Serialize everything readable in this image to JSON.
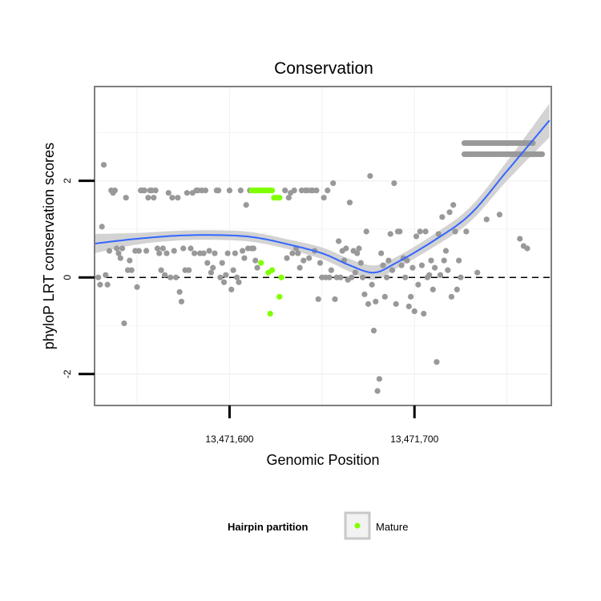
{
  "chart_data": {
    "type": "scatter",
    "title": "Conservation",
    "xlabel": "Genomic Position",
    "ylabel": "phyloP LRT conservation scores",
    "xlim": [
      13471527,
      13471774
    ],
    "ylim": [
      -2.65,
      3.95
    ],
    "x_ticks": [
      {
        "value": 13471600,
        "label": "13,471,600"
      },
      {
        "value": 13471700,
        "label": "13,471,700"
      }
    ],
    "y_ticks": [
      {
        "value": -2,
        "label": "-2"
      },
      {
        "value": 0,
        "label": "0"
      },
      {
        "value": 2,
        "label": "2"
      }
    ],
    "grid": true,
    "reference_line_y": 0,
    "legend": {
      "title": "Hairpin partition",
      "entries": [
        {
          "label": "Mature",
          "color": "#7fff00"
        }
      ],
      "position": "bottom"
    },
    "colors": {
      "points": "#999999",
      "mature": "#7fff00",
      "smooth": "#3366ff",
      "ribbon": "#c8c8c8",
      "panel_border": "#7f7f7f",
      "grid": "#f2f2f2"
    },
    "series": [
      {
        "name": "Other",
        "points": [
          [
            13471529,
            0.0
          ],
          [
            13471530,
            -0.15
          ],
          [
            13471531,
            1.05
          ],
          [
            13471532,
            2.33
          ],
          [
            13471533,
            0.05
          ],
          [
            13471534,
            -0.15
          ],
          [
            13471535,
            0.55
          ],
          [
            13471536,
            1.8
          ],
          [
            13471537,
            1.75
          ],
          [
            13471538,
            1.8
          ],
          [
            13471539,
            0.6
          ],
          [
            13471540,
            0.5
          ],
          [
            13471541,
            0.4
          ],
          [
            13471542,
            0.6
          ],
          [
            13471543,
            -0.95
          ],
          [
            13471544,
            1.65
          ],
          [
            13471545,
            0.15
          ],
          [
            13471546,
            0.35
          ],
          [
            13471547,
            0.15
          ],
          [
            13471549,
            0.55
          ],
          [
            13471550,
            -0.2
          ],
          [
            13471551,
            0.55
          ],
          [
            13471552,
            1.8
          ],
          [
            13471553,
            1.8
          ],
          [
            13471554,
            1.8
          ],
          [
            13471555,
            0.55
          ],
          [
            13471556,
            1.65
          ],
          [
            13471557,
            1.8
          ],
          [
            13471558,
            1.8
          ],
          [
            13471559,
            1.65
          ],
          [
            13471560,
            1.8
          ],
          [
            13471561,
            0.6
          ],
          [
            13471562,
            0.5
          ],
          [
            13471563,
            0.15
          ],
          [
            13471564,
            0.6
          ],
          [
            13471565,
            0.05
          ],
          [
            13471566,
            0.5
          ],
          [
            13471567,
            1.75
          ],
          [
            13471568,
            0.0
          ],
          [
            13471569,
            1.65
          ],
          [
            13471570,
            0.55
          ],
          [
            13471571,
            0.0
          ],
          [
            13471572,
            1.65
          ],
          [
            13471573,
            -0.3
          ],
          [
            13471574,
            -0.5
          ],
          [
            13471575,
            0.6
          ],
          [
            13471576,
            0.15
          ],
          [
            13471577,
            1.75
          ],
          [
            13471578,
            0.15
          ],
          [
            13471579,
            0.6
          ],
          [
            13471580,
            1.75
          ],
          [
            13471581,
            0.5
          ],
          [
            13471582,
            1.8
          ],
          [
            13471583,
            1.8
          ],
          [
            13471584,
            0.5
          ],
          [
            13471585,
            1.8
          ],
          [
            13471586,
            0.5
          ],
          [
            13471587,
            1.8
          ],
          [
            13471588,
            0.3
          ],
          [
            13471589,
            0.55
          ],
          [
            13471590,
            0.1
          ],
          [
            13471591,
            0.2
          ],
          [
            13471592,
            0.5
          ],
          [
            13471593,
            1.8
          ],
          [
            13471594,
            1.8
          ],
          [
            13471595,
            0.0
          ],
          [
            13471596,
            0.3
          ],
          [
            13471597,
            -0.1
          ],
          [
            13471598,
            0.05
          ],
          [
            13471599,
            0.5
          ],
          [
            13471600,
            1.8
          ],
          [
            13471601,
            -0.25
          ],
          [
            13471602,
            0.15
          ],
          [
            13471603,
            0.5
          ],
          [
            13471604,
            0.0
          ],
          [
            13471605,
            -0.1
          ],
          [
            13471606,
            1.8
          ],
          [
            13471607,
            0.55
          ],
          [
            13471608,
            0.4
          ],
          [
            13471609,
            1.5
          ],
          [
            13471610,
            0.6
          ],
          [
            13471611,
            1.8
          ],
          [
            13471612,
            0.6
          ],
          [
            13471613,
            0.6
          ],
          [
            13471614,
            0.35
          ],
          [
            13471615,
            0.2
          ],
          [
            13471630,
            1.8
          ],
          [
            13471631,
            0.4
          ],
          [
            13471632,
            1.65
          ],
          [
            13471633,
            1.75
          ],
          [
            13471634,
            0.5
          ],
          [
            13471635,
            1.8
          ],
          [
            13471636,
            0.6
          ],
          [
            13471637,
            0.5
          ],
          [
            13471638,
            0.2
          ],
          [
            13471639,
            1.8
          ],
          [
            13471640,
            0.35
          ],
          [
            13471641,
            1.8
          ],
          [
            13471642,
            1.8
          ],
          [
            13471643,
            0.4
          ],
          [
            13471644,
            1.8
          ],
          [
            13471645,
            1.8
          ],
          [
            13471646,
            0.55
          ],
          [
            13471647,
            1.8
          ],
          [
            13471648,
            -0.45
          ],
          [
            13471649,
            0.3
          ],
          [
            13471650,
            0.0
          ],
          [
            13471651,
            1.65
          ],
          [
            13471652,
            0.0
          ],
          [
            13471653,
            1.8
          ],
          [
            13471654,
            0.0
          ],
          [
            13471655,
            0.15
          ],
          [
            13471656,
            1.95
          ],
          [
            13471657,
            -0.45
          ],
          [
            13471658,
            0.0
          ],
          [
            13471659,
            0.75
          ],
          [
            13471660,
            0.0
          ],
          [
            13471661,
            0.55
          ],
          [
            13471662,
            0.35
          ],
          [
            13471663,
            0.6
          ],
          [
            13471664,
            -0.05
          ],
          [
            13471665,
            1.55
          ],
          [
            13471666,
            0.0
          ],
          [
            13471667,
            0.55
          ],
          [
            13471668,
            0.1
          ],
          [
            13471669,
            0.5
          ],
          [
            13471670,
            0.6
          ],
          [
            13471671,
            0.3
          ],
          [
            13471672,
            0.0
          ],
          [
            13471673,
            -0.35
          ],
          [
            13471674,
            0.95
          ],
          [
            13471675,
            -0.55
          ],
          [
            13471676,
            2.1
          ],
          [
            13471677,
            -0.15
          ],
          [
            13471678,
            -1.1
          ],
          [
            13471679,
            -0.5
          ],
          [
            13471680,
            -2.35
          ],
          [
            13471681,
            -2.1
          ],
          [
            13471682,
            0.5
          ],
          [
            13471683,
            0.25
          ],
          [
            13471684,
            -0.4
          ],
          [
            13471685,
            0.0
          ],
          [
            13471686,
            0.35
          ],
          [
            13471687,
            0.9
          ],
          [
            13471688,
            0.15
          ],
          [
            13471689,
            1.95
          ],
          [
            13471690,
            -0.55
          ],
          [
            13471691,
            0.95
          ],
          [
            13471692,
            0.95
          ],
          [
            13471693,
            0.25
          ],
          [
            13471694,
            0.4
          ],
          [
            13471695,
            0.0
          ],
          [
            13471696,
            0.35
          ],
          [
            13471697,
            -0.6
          ],
          [
            13471698,
            -0.4
          ],
          [
            13471699,
            0.2
          ],
          [
            13471700,
            -0.7
          ],
          [
            13471701,
            0.85
          ],
          [
            13471702,
            -0.15
          ],
          [
            13471703,
            0.95
          ],
          [
            13471704,
            0.25
          ],
          [
            13471705,
            -0.75
          ],
          [
            13471706,
            0.95
          ],
          [
            13471707,
            0.0
          ],
          [
            13471708,
            0.05
          ],
          [
            13471709,
            0.35
          ],
          [
            13471710,
            -0.25
          ],
          [
            13471711,
            0.2
          ],
          [
            13471712,
            -1.75
          ],
          [
            13471713,
            0.9
          ],
          [
            13471714,
            0.05
          ],
          [
            13471715,
            1.25
          ],
          [
            13471716,
            0.35
          ],
          [
            13471717,
            0.55
          ],
          [
            13471718,
            0.15
          ],
          [
            13471719,
            1.35
          ],
          [
            13471720,
            -0.4
          ],
          [
            13471721,
            1.5
          ],
          [
            13471722,
            0.95
          ],
          [
            13471723,
            -0.25
          ],
          [
            13471724,
            0.35
          ],
          [
            13471725,
            0.0
          ],
          [
            13471728,
            0.95
          ],
          [
            13471734,
            0.1
          ],
          [
            13471739,
            1.2
          ],
          [
            13471746,
            1.3
          ],
          [
            13471757,
            0.8
          ],
          [
            13471759,
            0.65
          ],
          [
            13471761,
            0.6
          ]
        ],
        "rows": [
          {
            "y": 2.78,
            "x_from": 13471727,
            "x_to": 13471764
          },
          {
            "y": 2.55,
            "x_from": 13471727,
            "x_to": 13471769
          }
        ]
      },
      {
        "name": "Mature",
        "points": [
          [
            13471612,
            1.8
          ],
          [
            13471613,
            1.8
          ],
          [
            13471614,
            1.8
          ],
          [
            13471615,
            1.8
          ],
          [
            13471616,
            1.8
          ],
          [
            13471617,
            1.8
          ],
          [
            13471618,
            1.8
          ],
          [
            13471619,
            1.8
          ],
          [
            13471620,
            1.8
          ],
          [
            13471621,
            1.8
          ],
          [
            13471622,
            1.8
          ],
          [
            13471623,
            1.8
          ],
          [
            13471624,
            1.65
          ],
          [
            13471625,
            1.65
          ],
          [
            13471626,
            1.65
          ],
          [
            13471627,
            1.65
          ],
          [
            13471617,
            0.3
          ],
          [
            13471621,
            0.1
          ],
          [
            13471623,
            0.15
          ],
          [
            13471627,
            -0.4
          ],
          [
            13471628,
            0.0
          ],
          [
            13471622,
            -0.75
          ]
        ]
      }
    ],
    "smooth": {
      "method": "loess",
      "x": [
        13471527,
        13471550,
        13471575,
        13471600,
        13471615,
        13471630,
        13471650,
        13471665,
        13471678,
        13471690,
        13471710,
        13471730,
        13471750,
        13471773
      ],
      "y": [
        0.7,
        0.8,
        0.87,
        0.87,
        0.82,
        0.7,
        0.5,
        0.25,
        0.1,
        0.3,
        0.75,
        1.3,
        2.2,
        3.25
      ],
      "se": [
        0.2,
        0.12,
        0.1,
        0.1,
        0.1,
        0.1,
        0.12,
        0.13,
        0.15,
        0.12,
        0.13,
        0.15,
        0.2,
        0.35
      ]
    }
  }
}
